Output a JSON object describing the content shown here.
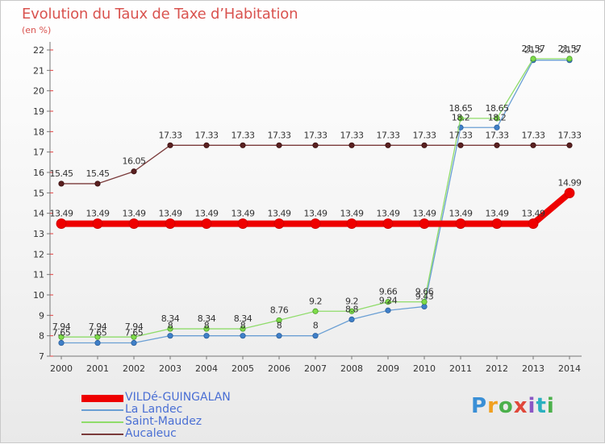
{
  "title": "Evolution du Taux de Taxe d’Habitation",
  "unit_label": "(en %)",
  "logo": {
    "text": "Proxiti"
  },
  "chart_data": {
    "type": "line",
    "title": "Evolution du Taux de Taxe d’Habitation",
    "ylabel": "(en %)",
    "xlabel": "",
    "x": [
      "2000",
      "2001",
      "2002",
      "2003",
      "2004",
      "2005",
      "2006",
      "2007",
      "2008",
      "2009",
      "2010",
      "2011",
      "2012",
      "2013",
      "2014"
    ],
    "ylim": [
      7,
      22
    ],
    "yticks": [
      7,
      8,
      9,
      10,
      11,
      12,
      13,
      14,
      15,
      16,
      17,
      18,
      19,
      20,
      21,
      22
    ],
    "grid": false,
    "legend_position": "bottom",
    "series": [
      {
        "name": "VILDé-GUINGALAN",
        "color": "#ee0000",
        "values": [
          13.49,
          13.49,
          13.49,
          13.49,
          13.49,
          13.49,
          13.49,
          13.49,
          13.49,
          13.49,
          13.49,
          13.49,
          13.49,
          13.49,
          14.99
        ],
        "labels": [
          "13.49",
          "13.49",
          "13.49",
          "13.49",
          "13.49",
          "13.49",
          "13.49",
          "13.49",
          "13.49",
          "13.49",
          "13.49",
          "13.49",
          "13.49",
          "13.49",
          "14.99"
        ]
      },
      {
        "name": "La Landec",
        "color": "#6a9fd4",
        "values": [
          7.65,
          7.65,
          7.65,
          8,
          8,
          8,
          8,
          8,
          8.8,
          9.24,
          9.43,
          18.2,
          18.2,
          21.5,
          21.5
        ],
        "labels": [
          "7.65",
          "7.65",
          "7.65",
          "8",
          "8",
          "8",
          "8",
          "8",
          "8.8",
          "9.24",
          "9.43",
          "18.2",
          "18.2",
          "21.5",
          "21.5"
        ]
      },
      {
        "name": "Saint-Maudez",
        "color": "#8fdc6a",
        "values": [
          7.94,
          7.94,
          7.94,
          8.34,
          8.34,
          8.34,
          8.76,
          9.2,
          9.2,
          9.66,
          9.66,
          18.65,
          18.65,
          21.57,
          21.57
        ],
        "labels": [
          "7.94",
          "7.94",
          "7.94",
          "8.34",
          "8.34",
          "8.34",
          "8.76",
          "9.2",
          "9.2",
          "9.66",
          "9.66",
          "18.65",
          "18.65",
          "21.57",
          "21.57"
        ]
      },
      {
        "name": "Aucaleuc",
        "color": "#7a3a3a",
        "values": [
          15.45,
          15.45,
          16.05,
          17.33,
          17.33,
          17.33,
          17.33,
          17.33,
          17.33,
          17.33,
          17.33,
          17.33,
          17.33,
          17.33,
          17.33
        ],
        "labels": [
          "15.45",
          "15.45",
          "16.05",
          "17.33",
          "17.33",
          "17.33",
          "17.33",
          "17.33",
          "17.33",
          "17.33",
          "17.33",
          "17.33",
          "17.33",
          "17.33",
          "17.33"
        ]
      }
    ]
  }
}
